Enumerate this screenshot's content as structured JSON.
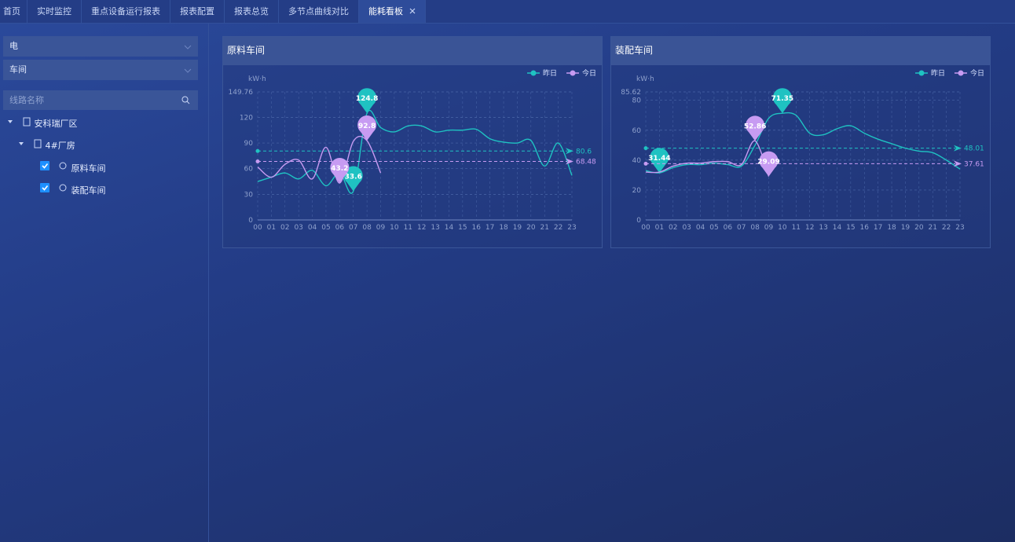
{
  "tabs": [
    "首页",
    "实时监控",
    "重点设备运行报表",
    "报表配置",
    "报表总览",
    "多节点曲线对比",
    "能耗看板"
  ],
  "sidebar": {
    "selects": [
      "电",
      "车间"
    ],
    "search_placeholder": "线路名称",
    "tree": {
      "root": "安科瑞厂区",
      "building": "4#厂房",
      "leaves": [
        "原料车间",
        "装配车间"
      ]
    }
  },
  "chart_data": [
    {
      "type": "line",
      "title": "原料车间",
      "y_label": "kW·h",
      "categories": [
        "00",
        "01",
        "02",
        "03",
        "04",
        "05",
        "06",
        "07",
        "08",
        "09",
        "10",
        "11",
        "12",
        "13",
        "14",
        "15",
        "16",
        "17",
        "18",
        "19",
        "20",
        "21",
        "22",
        "23"
      ],
      "ylim": [
        0,
        149.76
      ],
      "yticks": [
        0,
        30,
        60,
        90,
        120,
        149.76
      ],
      "grid": true,
      "series": [
        {
          "name": "昨日",
          "color": "#1fc2c2",
          "average": 80.6,
          "values": [
            45,
            50,
            55,
            48,
            58,
            40,
            55,
            33.6,
            124.8,
            108,
            103,
            110,
            110,
            103,
            105,
            105,
            106,
            95,
            91,
            90,
            93,
            63,
            90,
            52
          ]
        },
        {
          "name": "今日",
          "color": "#c79bf2",
          "average": 68.48,
          "values": [
            62,
            50,
            65,
            70,
            48,
            85,
            43.2,
            92,
            92.8,
            55,
            null,
            null,
            null,
            null,
            null,
            null,
            null,
            null,
            null,
            null,
            null,
            null,
            null,
            null
          ]
        }
      ]
    },
    {
      "type": "line",
      "title": "装配车间",
      "y_label": "kW·h",
      "categories": [
        "00",
        "01",
        "02",
        "03",
        "04",
        "05",
        "06",
        "07",
        "08",
        "09",
        "10",
        "11",
        "12",
        "13",
        "14",
        "15",
        "16",
        "17",
        "18",
        "19",
        "20",
        "21",
        "22",
        "23"
      ],
      "ylim": [
        0,
        85.62
      ],
      "yticks": [
        0,
        20,
        40,
        60,
        80,
        85.62
      ],
      "grid": true,
      "series": [
        {
          "name": "昨日",
          "color": "#1fc2c2",
          "average": 48.01,
          "values": [
            33,
            31.44,
            35,
            37,
            37,
            38,
            37,
            36,
            50,
            68,
            71.35,
            70,
            58,
            57,
            61,
            63,
            58,
            54,
            51,
            48,
            46,
            45,
            40,
            34
          ]
        },
        {
          "name": "今日",
          "color": "#c79bf2",
          "average": 37.61,
          "values": [
            32,
            32,
            36,
            38,
            38,
            39,
            39,
            37,
            52.86,
            29.09,
            null,
            null,
            null,
            null,
            null,
            null,
            null,
            null,
            null,
            null,
            null,
            null,
            null,
            null
          ]
        }
      ]
    }
  ]
}
